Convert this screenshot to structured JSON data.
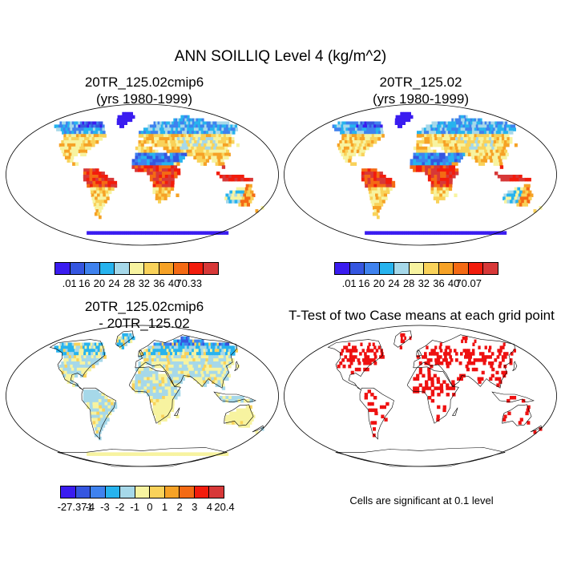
{
  "figure": {
    "title": "ANN SOILLIQ Level 4 (kg/m^2)"
  },
  "panels": [
    {
      "title_line1": "20TR_125.02cmip6",
      "title_line2": "(yrs 1980-1999)",
      "colorbar": {
        "labels": [
          ".01",
          "16",
          "20",
          "24",
          "28",
          "32",
          "36",
          "40",
          "70.33"
        ],
        "colors": [
          "#3a1cf0",
          "#3556e0",
          "#3f82ee",
          "#27b3ee",
          "#a6d8e9",
          "#f7f3a0",
          "#f9d25a",
          "#f6a226",
          "#f46a14",
          "#f21c0c",
          "#d73838"
        ]
      }
    },
    {
      "title_line1": "20TR_125.02",
      "title_line2": "(yrs 1980-1999)",
      "colorbar": {
        "labels": [
          ".01",
          "16",
          "20",
          "24",
          "28",
          "32",
          "36",
          "40",
          "70.07"
        ],
        "colors": [
          "#3a1cf0",
          "#3556e0",
          "#3f82ee",
          "#27b3ee",
          "#a6d8e9",
          "#f7f3a0",
          "#f9d25a",
          "#f6a226",
          "#f46a14",
          "#f21c0c",
          "#d73838"
        ]
      }
    },
    {
      "title_line1": "20TR_125.02cmip6",
      "title_line2": "- 20TR_125.02",
      "colorbar": {
        "labels": [
          "-27.371",
          "-4",
          "-3",
          "-2",
          "-1",
          "0",
          "1",
          "2",
          "3",
          "4",
          "20.4"
        ],
        "colors": [
          "#3a1cf0",
          "#3556e0",
          "#3f82ee",
          "#27b3ee",
          "#a6d8e9",
          "#f7f3a0",
          "#f9d25a",
          "#f6a226",
          "#f46a14",
          "#f21c0c",
          "#d73838"
        ]
      }
    },
    {
      "title_line1": "T-Test of two Case means at each grid point",
      "note": "Cells are significant at 0.1 level",
      "sig_color": "#ee1111"
    }
  ],
  "colors": {
    "ocean": "#ffffff",
    "coast": "#000000"
  }
}
